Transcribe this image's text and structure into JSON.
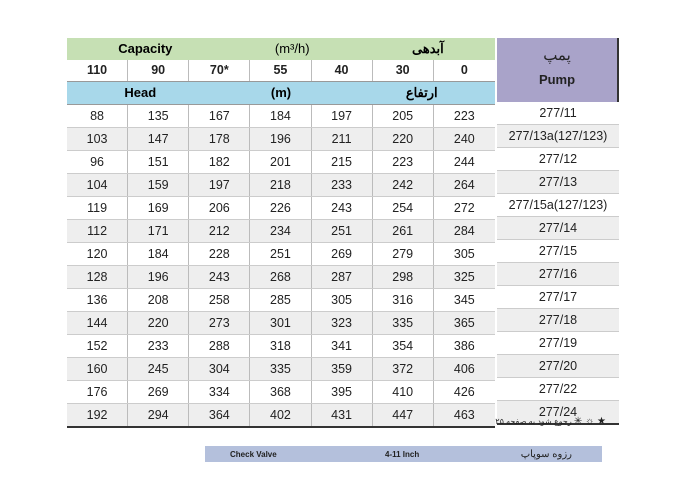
{
  "header": {
    "capacity": "Capacity",
    "capacity_unit": "(m³/h)",
    "capacity_fa": "آبدهی",
    "head": "Head",
    "head_unit": "(m)",
    "head_fa": "ارتفاع",
    "pump_fa": "پمپ",
    "pump": "Pump"
  },
  "capacities": [
    "110",
    "90",
    "70*",
    "55",
    "40",
    "30",
    "0"
  ],
  "rows": [
    {
      "pump": "277/11",
      "values": [
        "88",
        "135",
        "167",
        "184",
        "197",
        "205",
        "223"
      ]
    },
    {
      "pump": "277/13a(127/123)",
      "values": [
        "103",
        "147",
        "178",
        "196",
        "211",
        "220",
        "240"
      ]
    },
    {
      "pump": "277/12",
      "values": [
        "96",
        "151",
        "182",
        "201",
        "215",
        "223",
        "244"
      ]
    },
    {
      "pump": "277/13",
      "values": [
        "104",
        "159",
        "197",
        "218",
        "233",
        "242",
        "264"
      ]
    },
    {
      "pump": "277/15a(127/123)",
      "values": [
        "119",
        "169",
        "206",
        "226",
        "243",
        "254",
        "272"
      ]
    },
    {
      "pump": "277/14",
      "values": [
        "112",
        "171",
        "212",
        "234",
        "251",
        "261",
        "284"
      ]
    },
    {
      "pump": "277/15",
      "values": [
        "120",
        "184",
        "228",
        "251",
        "269",
        "279",
        "305"
      ]
    },
    {
      "pump": "277/16",
      "values": [
        "128",
        "196",
        "243",
        "268",
        "287",
        "298",
        "325"
      ]
    },
    {
      "pump": "277/17",
      "values": [
        "136",
        "208",
        "258",
        "285",
        "305",
        "316",
        "345"
      ]
    },
    {
      "pump": "277/18",
      "values": [
        "144",
        "220",
        "273",
        "301",
        "323",
        "335",
        "365"
      ]
    },
    {
      "pump": "277/19",
      "values": [
        "152",
        "233",
        "288",
        "318",
        "341",
        "354",
        "386"
      ]
    },
    {
      "pump": "277/20",
      "values": [
        "160",
        "245",
        "304",
        "335",
        "359",
        "372",
        "406"
      ]
    },
    {
      "pump": "277/22",
      "values": [
        "176",
        "269",
        "334",
        "368",
        "395",
        "410",
        "426"
      ]
    },
    {
      "pump": "277/24",
      "values": [
        "192",
        "294",
        "364",
        "402",
        "431",
        "447",
        "463"
      ]
    }
  ],
  "footnote": {
    "symbols": "★ ☼ ✳",
    "text": "رجوع شود به صفحه ۲۵"
  },
  "bottom_bar": {
    "left": "Check Valve",
    "middle": "4-11 Inch",
    "right": "رزوه سوپاپ"
  }
}
